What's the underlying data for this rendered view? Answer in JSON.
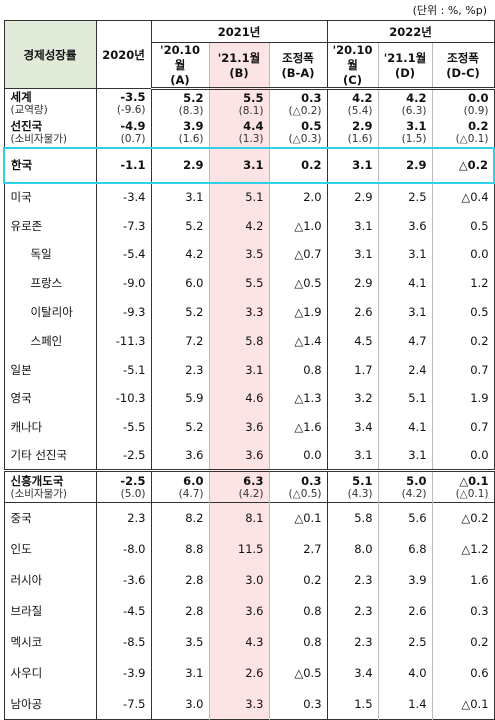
{
  "unit": "(단위 : %, %p)",
  "header": {
    "indicator": "경제성장률",
    "base_year": "2020년",
    "groups": [
      "2021년",
      "2022년"
    ],
    "columns": [
      {
        "date": "'20.10월",
        "code": "(A)"
      },
      {
        "date": "'21.1월",
        "code": "(B)"
      },
      {
        "date": "조정폭",
        "code": "(B-A)"
      },
      {
        "date": "'20.10월",
        "code": "(C)"
      },
      {
        "date": "'21.1월",
        "code": "(D)"
      },
      {
        "date": "조정폭",
        "code": "(D-C)"
      }
    ]
  },
  "rows": [
    {
      "label": "세계",
      "sublabel": "(교역량)",
      "values": [
        "-3.5",
        "5.2",
        "5.5",
        "0.3",
        "4.2",
        "4.2",
        "0.0"
      ],
      "subvalues": [
        "(-9.6)",
        "(8.3)",
        "(8.1)",
        "(△0.2)",
        "(5.4)",
        "(6.3)",
        "(0.9)"
      ]
    },
    {
      "label": "선진국",
      "sublabel": "(소비자물가)",
      "values": [
        "-4.9",
        "3.9",
        "4.4",
        "0.5",
        "2.9",
        "3.1",
        "0.2"
      ],
      "subvalues": [
        "(0.7)",
        "(1.6)",
        "(1.3)",
        "(△0.3)",
        "(1.6)",
        "(1.5)",
        "(△0.1)"
      ]
    },
    {
      "label": "한국",
      "values": [
        "-1.1",
        "2.9",
        "3.1",
        "0.2",
        "3.1",
        "2.9",
        "△0.2"
      ]
    },
    {
      "label": "미국",
      "values": [
        "-3.4",
        "3.1",
        "5.1",
        "2.0",
        "2.9",
        "2.5",
        "△0.4"
      ]
    },
    {
      "label": "유로존",
      "values": [
        "-7.3",
        "5.2",
        "4.2",
        "△1.0",
        "3.1",
        "3.6",
        "0.5"
      ]
    },
    {
      "label": "독일",
      "values": [
        "-5.4",
        "4.2",
        "3.5",
        "△0.7",
        "3.1",
        "3.1",
        "0.0"
      ]
    },
    {
      "label": "프랑스",
      "values": [
        "-9.0",
        "6.0",
        "5.5",
        "△0.5",
        "2.9",
        "4.1",
        "1.2"
      ]
    },
    {
      "label": "이탈리아",
      "values": [
        "-9.3",
        "5.2",
        "3.3",
        "△1.9",
        "2.6",
        "3.1",
        "0.5"
      ]
    },
    {
      "label": "스페인",
      "values": [
        "-11.3",
        "7.2",
        "5.8",
        "△1.4",
        "4.5",
        "4.7",
        "0.2"
      ]
    },
    {
      "label": "일본",
      "values": [
        "-5.1",
        "2.3",
        "3.1",
        "0.8",
        "1.7",
        "2.4",
        "0.7"
      ]
    },
    {
      "label": "영국",
      "values": [
        "-10.3",
        "5.9",
        "4.6",
        "△1.3",
        "3.2",
        "5.1",
        "1.9"
      ]
    },
    {
      "label": "캐나다",
      "values": [
        "-5.5",
        "5.2",
        "3.6",
        "△1.6",
        "3.4",
        "4.1",
        "0.7"
      ]
    },
    {
      "label": "기타 선진국",
      "values": [
        "-2.5",
        "3.6",
        "3.6",
        "0.0",
        "3.1",
        "3.1",
        "0.0"
      ]
    },
    {
      "label": "신흥개도국",
      "sublabel": "(소비자물가)",
      "values": [
        "-2.5",
        "6.0",
        "6.3",
        "0.3",
        "5.1",
        "5.0",
        "△0.1"
      ],
      "subvalues": [
        "(5.0)",
        "(4.7)",
        "(4.2)",
        "(△0.5)",
        "(4.3)",
        "(4.2)",
        "(△0.1)"
      ]
    },
    {
      "label": "중국",
      "values": [
        "2.3",
        "8.2",
        "8.1",
        "△0.1",
        "5.8",
        "5.6",
        "△0.2"
      ]
    },
    {
      "label": "인도",
      "values": [
        "-8.0",
        "8.8",
        "11.5",
        "2.7",
        "8.0",
        "6.8",
        "△1.2"
      ]
    },
    {
      "label": "러시아",
      "values": [
        "-3.6",
        "2.8",
        "3.0",
        "0.2",
        "2.3",
        "3.9",
        "1.6"
      ]
    },
    {
      "label": "브라질",
      "values": [
        "-4.5",
        "2.8",
        "3.6",
        "0.8",
        "2.3",
        "2.6",
        "0.3"
      ]
    },
    {
      "label": "멕시코",
      "values": [
        "-8.5",
        "3.5",
        "4.3",
        "0.8",
        "2.3",
        "2.5",
        "0.2"
      ]
    },
    {
      "label": "사우디",
      "values": [
        "-3.9",
        "3.1",
        "2.6",
        "△0.5",
        "3.4",
        "4.0",
        "0.6"
      ]
    },
    {
      "label": "남아공",
      "values": [
        "-7.5",
        "3.0",
        "3.3",
        "0.3",
        "1.5",
        "1.4",
        "△0.1"
      ]
    }
  ]
}
